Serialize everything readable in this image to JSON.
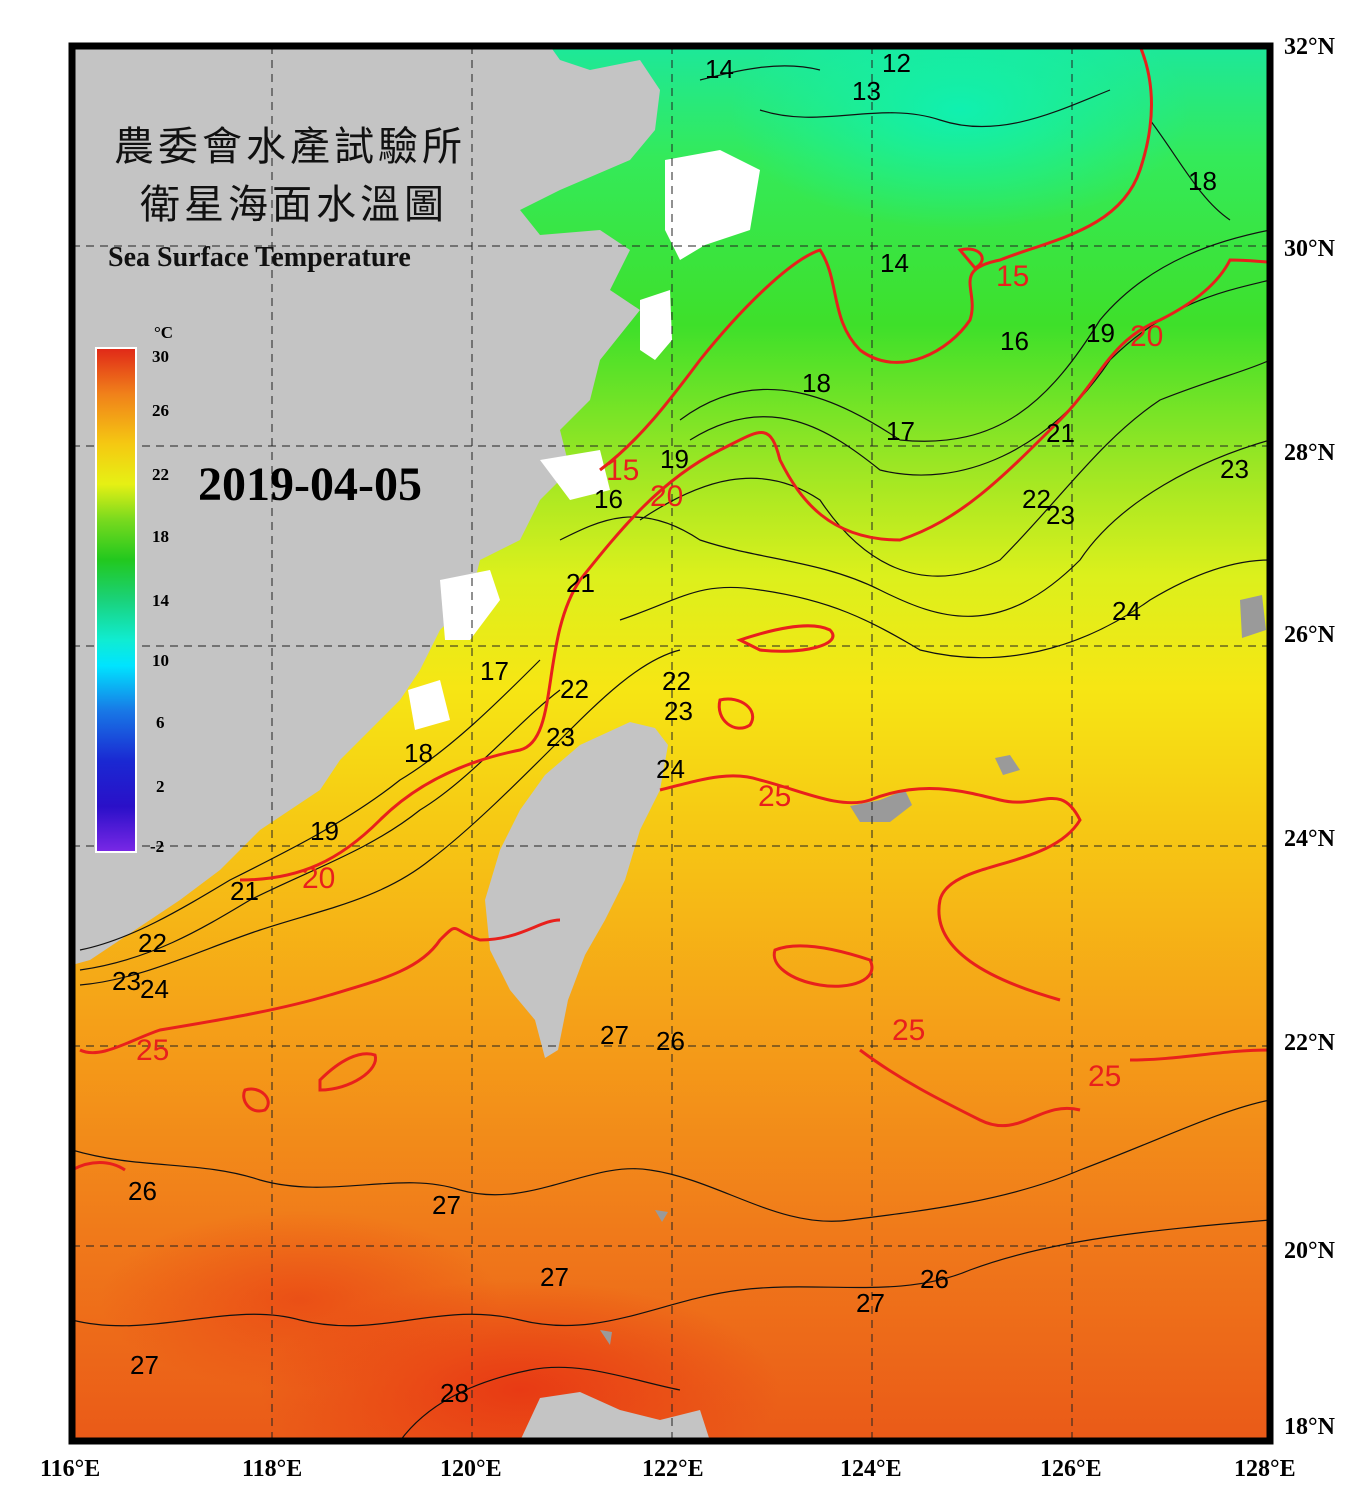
{
  "title": {
    "line1": "農委會水產試驗所",
    "line2": "衛星海面水溫圖",
    "english": "Sea Surface Temperature"
  },
  "date": "2019-04-05",
  "colorbar": {
    "unit": "°C",
    "ticks": [
      "30",
      "26",
      "22",
      "18",
      "14",
      "10",
      "6",
      "2",
      "-2"
    ],
    "colors": [
      "#e02818",
      "#f0801a",
      "#f5c812",
      "#e6f014",
      "#7ada1e",
      "#22c81e",
      "#1ad27a",
      "#10ecd2",
      "#00e4ff",
      "#1878e6",
      "#1a28d2",
      "#2a10c8",
      "#7a28e6"
    ]
  },
  "axes": {
    "longitude_labels": [
      "116°E",
      "118°E",
      "120°E",
      "122°E",
      "124°E",
      "126°E",
      "128°E"
    ],
    "latitude_labels": [
      "32°N",
      "30°N",
      "28°N",
      "26°N",
      "24°N",
      "22°N",
      "20°N",
      "18°N"
    ],
    "longitude_range": [
      116,
      128
    ],
    "latitude_range": [
      18,
      32
    ],
    "grid": "dashed"
  },
  "contour_labels": {
    "black": [
      "14",
      "12",
      "13",
      "18",
      "14",
      "16",
      "19",
      "21",
      "23",
      "18",
      "17",
      "19",
      "16",
      "22",
      "23",
      "24",
      "21",
      "17",
      "22",
      "23",
      "22",
      "23",
      "24",
      "18",
      "19",
      "21",
      "22",
      "23",
      "24",
      "27",
      "26",
      "26",
      "27",
      "27",
      "26",
      "27",
      "27",
      "28"
    ],
    "red": [
      "15",
      "15",
      "20",
      "20",
      "20",
      "25",
      "25",
      "25",
      "25"
    ]
  },
  "colors": {
    "land": "#c4c4c4",
    "frame": "#000000",
    "contour_major": "#e8201c",
    "contour_minor": "#111111"
  }
}
